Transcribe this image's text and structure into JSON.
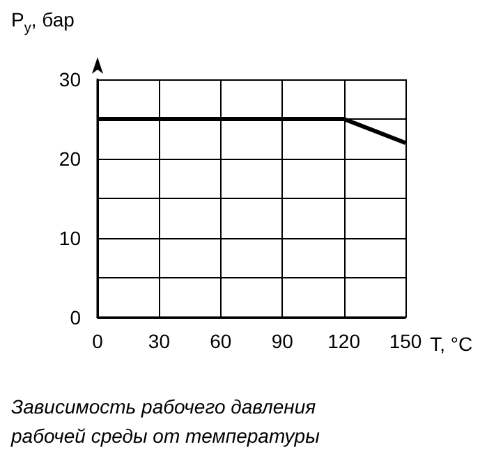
{
  "chart_data": {
    "type": "line",
    "title": "Зависимость рабочего давления рабочей среды от температуры",
    "xlabel": "T, °C",
    "ylabel": "P$_{у}$, бар",
    "x": [
      0,
      120,
      150
    ],
    "series": [
      {
        "color": "#000000",
        "values": [
          25,
          25,
          22
        ]
      }
    ],
    "xlim": [
      0,
      150
    ],
    "xticks": [
      0,
      30,
      60,
      90,
      120,
      150
    ],
    "ylim": [
      0,
      30
    ],
    "yticks": [
      0,
      {
        "value": 5,
        "label": null
      },
      10,
      {
        "value": 15,
        "label": null
      },
      20,
      {
        "value": 25,
        "label": null
      },
      30
    ],
    "grid": true,
    "marker": "none",
    "line_style": "solid"
  }
}
